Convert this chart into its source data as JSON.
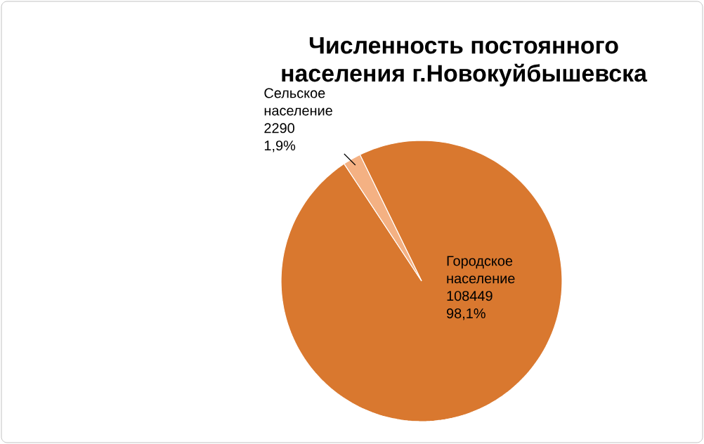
{
  "chart_data": {
    "type": "pie",
    "title": "Численность постоянного населения г.Новокуйбышевска",
    "categories": [
      "Городское население",
      "Сельское население"
    ],
    "values": [
      108449,
      2290
    ],
    "colors": [
      "#d9782f",
      "#f4b183"
    ],
    "value_labels": [
      "108449",
      "2290"
    ],
    "annotations": [
      "98,1%",
      "1,9%"
    ]
  }
}
